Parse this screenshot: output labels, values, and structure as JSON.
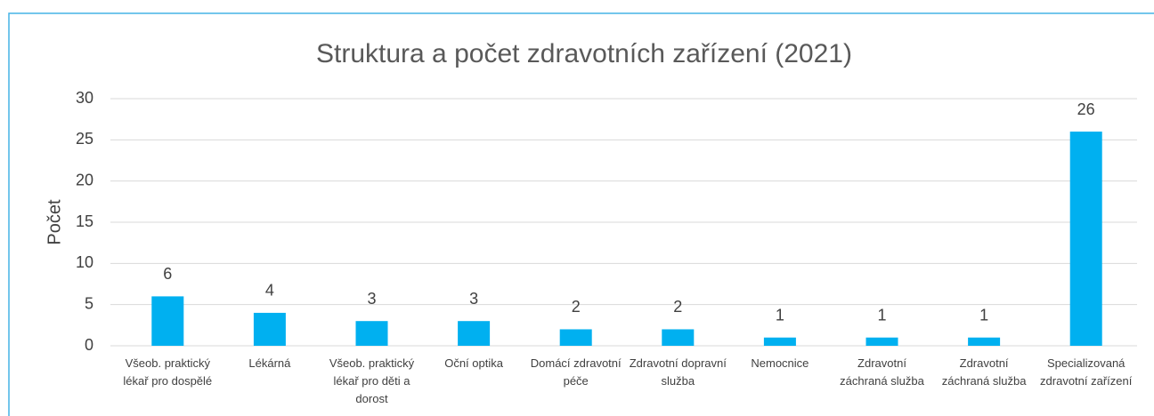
{
  "chart_data": {
    "type": "bar",
    "title": "Struktura a počet zdravotních zařízení (2021)",
    "y_label": "Počet",
    "categories": [
      "Všeob. praktický lékař pro dospělé",
      "Lékárná",
      "Všeob. praktický lékař pro děti a dorost",
      "Oční optika",
      "Domácí zdravotní péče",
      "Zdravotní dopravní služba",
      "Nemocnice",
      "Zdravotní záchraná služba",
      "Zdravotní záchraná služba",
      "Specializovaná zdravotní zařízení"
    ],
    "values": [
      6,
      4,
      3,
      3,
      2,
      2,
      1,
      1,
      1,
      26
    ],
    "color": "#00b0f0",
    "ylim": [
      0,
      30
    ],
    "yticks": [
      0,
      5,
      10,
      15,
      20,
      25,
      30
    ],
    "grid": true
  }
}
